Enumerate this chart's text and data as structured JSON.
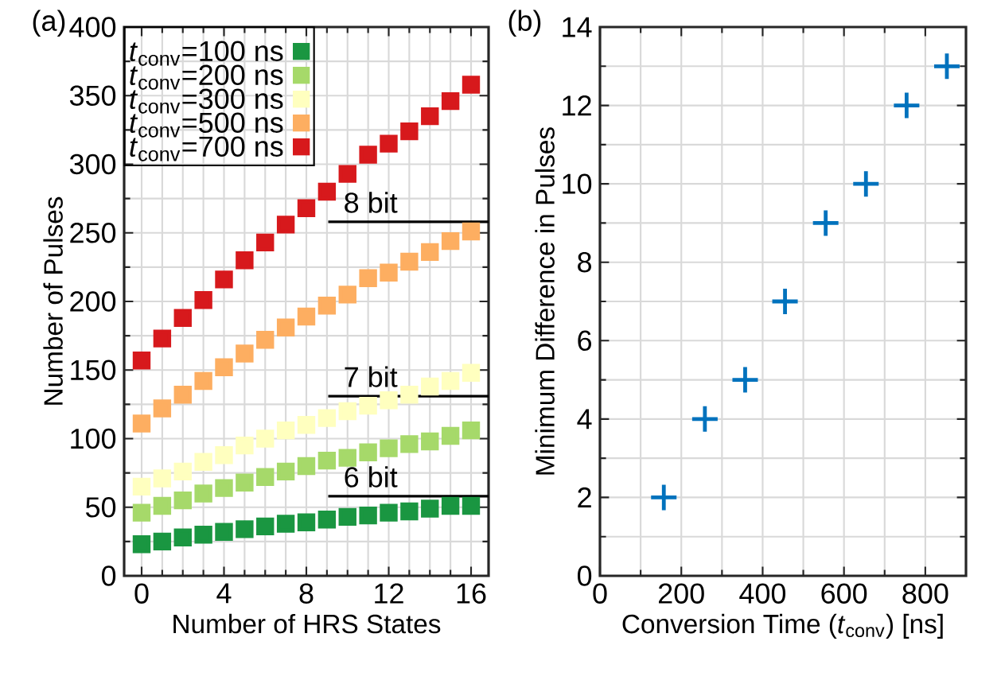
{
  "chart_data": [
    {
      "type": "scatter",
      "title": "(a)",
      "xlabel": "Number of HRS States",
      "ylabel": "Number of Pulses",
      "x": [
        0,
        1,
        2,
        3,
        4,
        5,
        6,
        7,
        8,
        9,
        10,
        11,
        12,
        13,
        14,
        15,
        16
      ],
      "series": [
        {
          "name": "*t*$_{conv}$=100 ns",
          "color": "#1a9641",
          "values": [
            23,
            25,
            28,
            30,
            32,
            34,
            36,
            38,
            39,
            41,
            43,
            44,
            46,
            47,
            49,
            51,
            51
          ]
        },
        {
          "name": "*t*$_{conv}$=200 ns",
          "color": "#a6d96a",
          "values": [
            46,
            51,
            55,
            60,
            64,
            68,
            72,
            76,
            80,
            84,
            86,
            90,
            93,
            96,
            98,
            102,
            106
          ]
        },
        {
          "name": "*t*$_{conv}$=300 ns",
          "color": "#ffffbf",
          "values": [
            65,
            71,
            76,
            83,
            88,
            95,
            100,
            106,
            110,
            115,
            120,
            124,
            128,
            132,
            138,
            142,
            148
          ]
        },
        {
          "name": "*t*$_{conv}$=500 ns",
          "color": "#fdae61",
          "values": [
            111,
            122,
            132,
            142,
            152,
            162,
            172,
            181,
            189,
            197,
            205,
            217,
            221,
            229,
            236,
            244,
            251
          ]
        },
        {
          "name": "*t*$_{conv}$=700 ns",
          "color": "#d7191c",
          "values": [
            157,
            173,
            188,
            201,
            216,
            230,
            243,
            256,
            268,
            280,
            293,
            307,
            315,
            324,
            335,
            346,
            358
          ]
        }
      ],
      "xlim": [
        -0.85,
        16.85
      ],
      "xticks": [
        0,
        4,
        8,
        12,
        16
      ],
      "ylim": [
        0,
        400
      ],
      "yticks": [
        0,
        50,
        100,
        150,
        200,
        250,
        300,
        350,
        400
      ],
      "ref_lines": [
        {
          "axis": "y",
          "value": 258,
          "label": "8 bit",
          "color": "#000000"
        },
        {
          "axis": "y",
          "value": 131,
          "label": "7 bit",
          "color": "#000000"
        },
        {
          "axis": "y",
          "value": 58,
          "label": "6 bit",
          "color": "#000000"
        }
      ],
      "grid": true,
      "legend": "top left",
      "marker": "square"
    },
    {
      "type": "scatter",
      "title": "(b)",
      "xlabel": "Conversion Time (*t*$_{conv}$) [ns]",
      "ylabel": "Minimum Difference in Pulses",
      "x": [
        157,
        258,
        357,
        455,
        555,
        654,
        754,
        853
      ],
      "series": [
        {
          "color": "#0072bd",
          "values": [
            2,
            4,
            5,
            7,
            9,
            10,
            12,
            13
          ]
        }
      ],
      "xlim": [
        0,
        900
      ],
      "xticks": [
        0,
        200,
        400,
        600,
        800
      ],
      "ylim": [
        0,
        14
      ],
      "yticks": [
        0,
        2,
        4,
        6,
        8,
        10,
        12,
        14
      ],
      "grid": true,
      "legend": false,
      "marker": "cross"
    }
  ]
}
